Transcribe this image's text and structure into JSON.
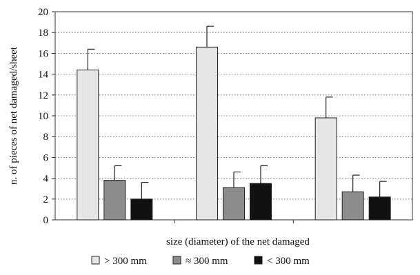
{
  "chart_data": {
    "type": "bar",
    "title": "",
    "xlabel": "size (diameter)  of the net damaged",
    "ylabel": "n. of pieces of net damaged/sheet",
    "ylim": [
      0,
      20
    ],
    "yticks": [
      "0",
      "2",
      "4",
      "6",
      "8",
      "10",
      "12",
      "14",
      "16",
      "18",
      "20"
    ],
    "grid": "horizontal dotted",
    "legend_position": "bottom",
    "categories": [
      "",
      "",
      ""
    ],
    "series": [
      {
        "name": "> 300 mm",
        "color": "#e6e6e6",
        "values": [
          14.4,
          16.6,
          9.8
        ],
        "errors": [
          2.0,
          2.0,
          2.0
        ]
      },
      {
        "name": "≈ 300 mm",
        "color": "#8c8c8c",
        "values": [
          3.8,
          3.1,
          2.7
        ],
        "errors": [
          1.4,
          1.5,
          1.6
        ]
      },
      {
        "name": "< 300 mm",
        "color": "#111111",
        "values": [
          2.0,
          3.5,
          2.2
        ],
        "errors": [
          1.6,
          1.7,
          1.5
        ]
      }
    ]
  }
}
